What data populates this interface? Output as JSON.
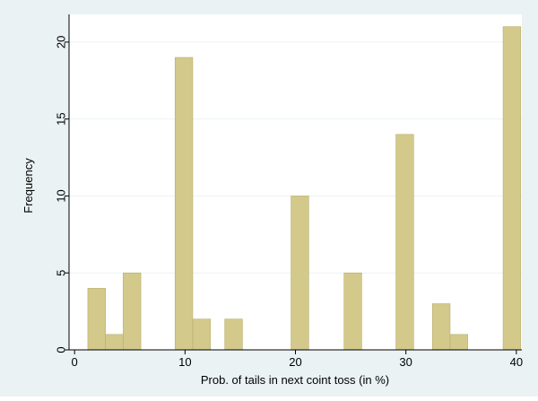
{
  "chart_data": {
    "type": "bar",
    "title": "",
    "xlabel": "Prob. of tails in next coint toss (in %)",
    "ylabel": "Frequency",
    "xlim": [
      -0.5,
      40.5
    ],
    "ylim": [
      0,
      21.8
    ],
    "xticks": [
      0,
      10,
      20,
      30,
      40
    ],
    "yticks": [
      0,
      5,
      10,
      15,
      20
    ],
    "xtick_labels": [
      "0",
      "10",
      "20",
      "30",
      "40"
    ],
    "ytick_labels": [
      "0",
      "5",
      "10",
      "15",
      "20"
    ],
    "bin_width": 1.6,
    "bins": [
      {
        "x": 2,
        "value": 4
      },
      {
        "x": 3.6,
        "value": 1
      },
      {
        "x": 5.2,
        "value": 5
      },
      {
        "x": 9.9,
        "value": 19
      },
      {
        "x": 11.5,
        "value": 2
      },
      {
        "x": 14.4,
        "value": 2
      },
      {
        "x": 20.4,
        "value": 10
      },
      {
        "x": 25.2,
        "value": 5
      },
      {
        "x": 29.9,
        "value": 14
      },
      {
        "x": 33.2,
        "value": 3
      },
      {
        "x": 34.8,
        "value": 1
      },
      {
        "x": 39.6,
        "value": 21
      }
    ],
    "grid": {
      "horizontal": true,
      "vertical": false
    },
    "colors": {
      "background": "#eaf2f3",
      "plot_area": "#ffffff",
      "bar_fill": "#d3c98a",
      "bar_stroke": "#b9ae6c",
      "grid": "#eaf2f3",
      "axis": "#000000"
    }
  }
}
